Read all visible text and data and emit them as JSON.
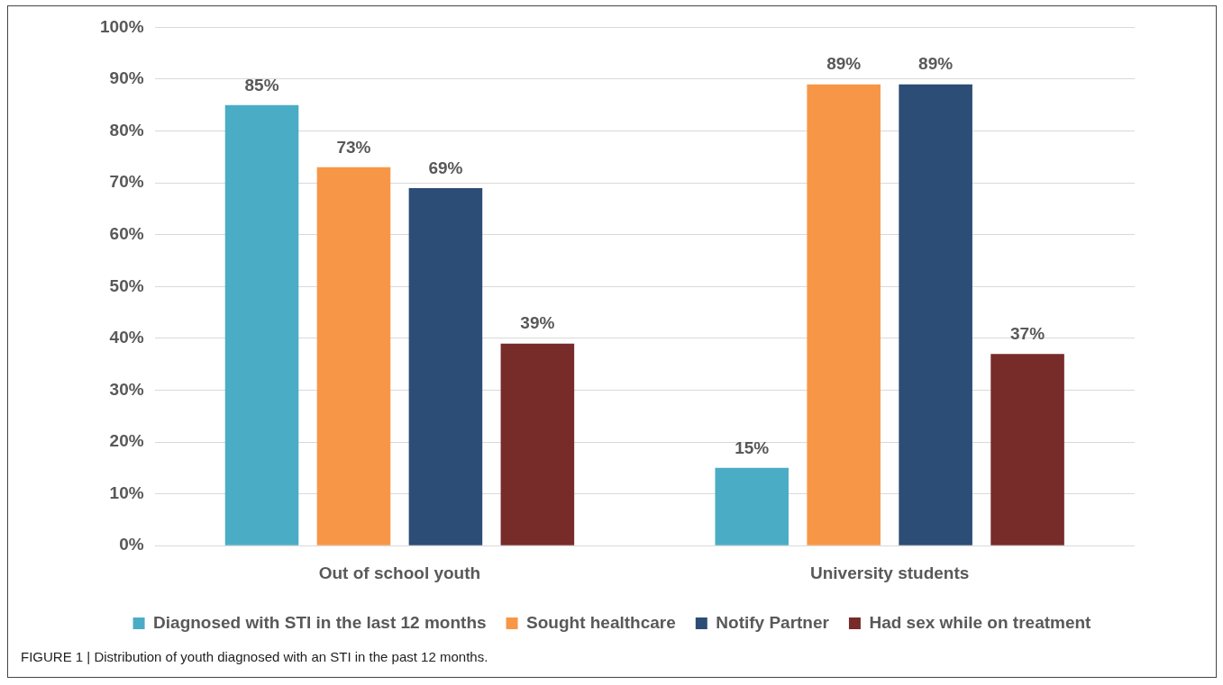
{
  "chart_data": {
    "type": "bar",
    "categories": [
      "Out of school youth",
      "University students"
    ],
    "series": [
      {
        "name": "Diagnosed with STI in the last 12 months",
        "color": "#4bacc6",
        "values": [
          85,
          15
        ],
        "value_labels": [
          "85%",
          "15%"
        ]
      },
      {
        "name": "Sought healthcare",
        "color": "#f79646",
        "values": [
          73,
          89
        ],
        "value_labels": [
          "73%",
          "89%"
        ]
      },
      {
        "name": "Notify Partner",
        "color": "#2c4d75",
        "values": [
          69,
          89
        ],
        "value_labels": [
          "69%",
          "89%"
        ]
      },
      {
        "name": "Had sex while on treatment",
        "color": "#772c2a",
        "values": [
          39,
          37
        ],
        "value_labels": [
          "39%",
          "37%"
        ]
      }
    ],
    "ylim": [
      0,
      100
    ],
    "yticks": [
      {
        "value": 0,
        "label": "0%"
      },
      {
        "value": 10,
        "label": "10%"
      },
      {
        "value": 20,
        "label": "20%"
      },
      {
        "value": 30,
        "label": "30%"
      },
      {
        "value": 40,
        "label": "40%"
      },
      {
        "value": 50,
        "label": "50%"
      },
      {
        "value": 60,
        "label": "60%"
      },
      {
        "value": 70,
        "label": "70%"
      },
      {
        "value": 80,
        "label": "80%"
      },
      {
        "value": 90,
        "label": "90%"
      },
      {
        "value": 100,
        "label": "100%"
      }
    ],
    "grid": "y",
    "legend": "bottom",
    "annotations": [
      "FIGURE 1 | Distribution of youth diagnosed with an STI in the past 12 months."
    ]
  }
}
